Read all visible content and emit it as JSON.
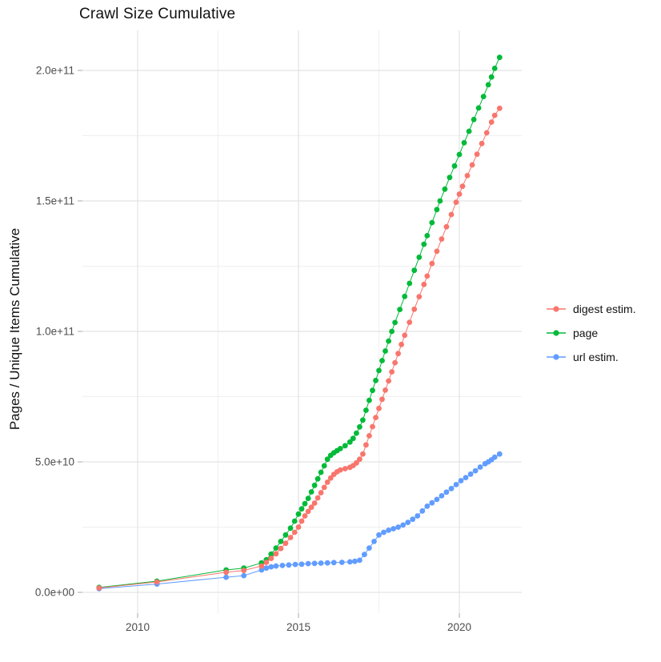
{
  "chart": {
    "title": "Crawl Size Cumulative",
    "y_axis_title": "Pages / Unique Items Cumulative"
  },
  "legend": {
    "position": "right",
    "items": [
      {
        "label": "digest estim.",
        "color": "#F8766D"
      },
      {
        "label": "page",
        "color": "#00BA38"
      },
      {
        "label": "url estim.",
        "color": "#619CFF"
      }
    ]
  },
  "chart_data": {
    "type": "line",
    "title": "Crawl Size Cumulative",
    "xlabel": "",
    "ylabel": "Pages / Unique Items Cumulative",
    "x_range_years": [
      2008.2,
      2021.9
    ],
    "y_range": [
      0,
      215000000000.0
    ],
    "grid": "on",
    "legend_position": "right",
    "value_unit": "1e9 (billions of pages / items)",
    "x_ticks": [
      {
        "label": "2010",
        "year": 2010
      },
      {
        "label": "2015",
        "year": 2015
      },
      {
        "label": "2020",
        "year": 2020
      }
    ],
    "x_minor_years": [
      2012.5,
      2017.5
    ],
    "y_ticks": [
      {
        "label": "0.0e+00",
        "e9": 0
      },
      {
        "label": "5.0e+10",
        "e9": 50
      },
      {
        "label": "1.0e+11",
        "e9": 100
      },
      {
        "label": "1.5e+11",
        "e9": 150
      },
      {
        "label": "2.0e+11",
        "e9": 200
      }
    ],
    "y_minor_e9": [
      25,
      75,
      125,
      175
    ],
    "series": [
      {
        "name": "digest estim.",
        "color": "#F8766D",
        "points_year_value_e9": [
          [
            2008.8,
            1.7
          ],
          [
            2010.6,
            4.0
          ],
          [
            2012.75,
            7.7
          ],
          [
            2013.3,
            8.4
          ],
          [
            2013.85,
            10.1
          ],
          [
            2014.0,
            11.5
          ],
          [
            2014.15,
            13.0
          ],
          [
            2014.3,
            14.8
          ],
          [
            2014.45,
            16.8
          ],
          [
            2014.6,
            18.8
          ],
          [
            2014.75,
            21.0
          ],
          [
            2014.88,
            23.0
          ],
          [
            2015.0,
            25.0
          ],
          [
            2015.1,
            27.3
          ],
          [
            2015.2,
            29.3
          ],
          [
            2015.3,
            31.0
          ],
          [
            2015.4,
            32.6
          ],
          [
            2015.5,
            34.2
          ],
          [
            2015.6,
            36.2
          ],
          [
            2015.7,
            38.2
          ],
          [
            2015.8,
            40.2
          ],
          [
            2015.9,
            42.2
          ],
          [
            2016.0,
            43.8
          ],
          [
            2016.1,
            45.2
          ],
          [
            2016.2,
            46.2
          ],
          [
            2016.3,
            46.9
          ],
          [
            2016.45,
            47.4
          ],
          [
            2016.6,
            47.9
          ],
          [
            2016.7,
            48.6
          ],
          [
            2016.8,
            49.6
          ],
          [
            2016.9,
            51.0
          ],
          [
            2017.0,
            53.0
          ],
          [
            2017.1,
            56.5
          ],
          [
            2017.2,
            60.0
          ],
          [
            2017.3,
            63.5
          ],
          [
            2017.4,
            67.0
          ],
          [
            2017.5,
            70.5
          ],
          [
            2017.6,
            74.0
          ],
          [
            2017.7,
            77.5
          ],
          [
            2017.8,
            81.0
          ],
          [
            2017.9,
            84.5
          ],
          [
            2018.0,
            88.0
          ],
          [
            2018.1,
            91.5
          ],
          [
            2018.2,
            95.0
          ],
          [
            2018.3,
            98.5
          ],
          [
            2018.45,
            103.5
          ],
          [
            2018.6,
            108.5
          ],
          [
            2018.75,
            113.3
          ],
          [
            2018.9,
            118.0
          ],
          [
            2019.0,
            121.2
          ],
          [
            2019.15,
            126.0
          ],
          [
            2019.3,
            130.7
          ],
          [
            2019.45,
            135.4
          ],
          [
            2019.6,
            140.1
          ],
          [
            2019.75,
            144.8
          ],
          [
            2019.9,
            149.5
          ],
          [
            2020.0,
            152.6
          ],
          [
            2020.1,
            155.6
          ],
          [
            2020.25,
            159.7
          ],
          [
            2020.4,
            163.8
          ],
          [
            2020.55,
            167.9
          ],
          [
            2020.7,
            172.0
          ],
          [
            2020.85,
            176.1
          ],
          [
            2021.0,
            180.2
          ],
          [
            2021.1,
            182.8
          ],
          [
            2021.25,
            185.5
          ]
        ]
      },
      {
        "name": "page",
        "color": "#00BA38",
        "points_year_value_e9": [
          [
            2008.8,
            1.9
          ],
          [
            2010.6,
            4.3
          ],
          [
            2012.75,
            8.6
          ],
          [
            2013.3,
            9.3
          ],
          [
            2013.85,
            11.3
          ],
          [
            2014.0,
            12.5
          ],
          [
            2014.15,
            14.7
          ],
          [
            2014.3,
            17.0
          ],
          [
            2014.45,
            19.5
          ],
          [
            2014.6,
            22.0
          ],
          [
            2014.75,
            24.6
          ],
          [
            2014.88,
            27.3
          ],
          [
            2015.0,
            30.0
          ],
          [
            2015.1,
            32.0
          ],
          [
            2015.2,
            34.0
          ],
          [
            2015.3,
            36.0
          ],
          [
            2015.4,
            38.5
          ],
          [
            2015.5,
            41.0
          ],
          [
            2015.6,
            43.5
          ],
          [
            2015.7,
            46.0
          ],
          [
            2015.8,
            48.5
          ],
          [
            2015.9,
            51.0
          ],
          [
            2016.0,
            52.5
          ],
          [
            2016.1,
            53.5
          ],
          [
            2016.2,
            54.3
          ],
          [
            2016.3,
            55.1
          ],
          [
            2016.45,
            56.2
          ],
          [
            2016.6,
            57.6
          ],
          [
            2016.7,
            59.0
          ],
          [
            2016.8,
            61.0
          ],
          [
            2016.9,
            63.4
          ],
          [
            2017.0,
            66.0
          ],
          [
            2017.1,
            69.8
          ],
          [
            2017.2,
            73.6
          ],
          [
            2017.3,
            77.4
          ],
          [
            2017.4,
            81.2
          ],
          [
            2017.5,
            85.0
          ],
          [
            2017.6,
            88.8
          ],
          [
            2017.7,
            92.5
          ],
          [
            2017.8,
            96.3
          ],
          [
            2017.9,
            100.0
          ],
          [
            2018.0,
            103.4
          ],
          [
            2018.15,
            108.4
          ],
          [
            2018.3,
            113.4
          ],
          [
            2018.45,
            118.4
          ],
          [
            2018.6,
            123.4
          ],
          [
            2018.75,
            128.4
          ],
          [
            2018.9,
            133.4
          ],
          [
            2019.0,
            136.7
          ],
          [
            2019.15,
            141.7
          ],
          [
            2019.3,
            146.7
          ],
          [
            2019.4,
            150.0
          ],
          [
            2019.55,
            154.5
          ],
          [
            2019.7,
            159.0
          ],
          [
            2019.85,
            163.4
          ],
          [
            2020.0,
            167.8
          ],
          [
            2020.15,
            172.3
          ],
          [
            2020.3,
            176.7
          ],
          [
            2020.45,
            181.2
          ],
          [
            2020.6,
            185.6
          ],
          [
            2020.75,
            190.0
          ],
          [
            2020.9,
            194.5
          ],
          [
            2021.0,
            197.5
          ],
          [
            2021.1,
            200.8
          ],
          [
            2021.25,
            205.0
          ]
        ]
      },
      {
        "name": "url estim.",
        "color": "#619CFF",
        "points_year_value_e9": [
          [
            2008.8,
            1.4
          ],
          [
            2010.6,
            3.2
          ],
          [
            2012.75,
            5.8
          ],
          [
            2013.3,
            6.4
          ],
          [
            2013.85,
            8.6
          ],
          [
            2014.0,
            9.3
          ],
          [
            2014.15,
            9.8
          ],
          [
            2014.3,
            10.1
          ],
          [
            2014.5,
            10.3
          ],
          [
            2014.7,
            10.5
          ],
          [
            2014.9,
            10.7
          ],
          [
            2015.1,
            10.8
          ],
          [
            2015.3,
            11.0
          ],
          [
            2015.5,
            11.1
          ],
          [
            2015.7,
            11.2
          ],
          [
            2015.9,
            11.3
          ],
          [
            2016.1,
            11.4
          ],
          [
            2016.35,
            11.5
          ],
          [
            2016.6,
            11.7
          ],
          [
            2016.75,
            11.9
          ],
          [
            2016.9,
            12.3
          ],
          [
            2017.05,
            14.5
          ],
          [
            2017.2,
            17.0
          ],
          [
            2017.35,
            19.5
          ],
          [
            2017.5,
            22.0
          ],
          [
            2017.65,
            23.0
          ],
          [
            2017.8,
            23.8
          ],
          [
            2017.95,
            24.4
          ],
          [
            2018.1,
            25.0
          ],
          [
            2018.25,
            25.8
          ],
          [
            2018.4,
            26.8
          ],
          [
            2018.55,
            28.0
          ],
          [
            2018.7,
            29.3
          ],
          [
            2018.85,
            31.2
          ],
          [
            2019.0,
            33.0
          ],
          [
            2019.15,
            34.3
          ],
          [
            2019.3,
            35.6
          ],
          [
            2019.45,
            37.0
          ],
          [
            2019.6,
            38.4
          ],
          [
            2019.75,
            39.8
          ],
          [
            2019.9,
            41.3
          ],
          [
            2020.05,
            42.8
          ],
          [
            2020.2,
            44.0
          ],
          [
            2020.35,
            45.3
          ],
          [
            2020.5,
            46.6
          ],
          [
            2020.65,
            48.0
          ],
          [
            2020.8,
            49.3
          ],
          [
            2020.9,
            50.0
          ],
          [
            2021.0,
            50.8
          ],
          [
            2021.1,
            51.8
          ],
          [
            2021.25,
            53.0
          ]
        ]
      }
    ],
    "colors": {
      "grid_major": "#E3E3E3",
      "grid_minor": "#EFEFEF",
      "axis_tick": "#B0B0B0",
      "axis_text": "#4D4D4D"
    }
  }
}
